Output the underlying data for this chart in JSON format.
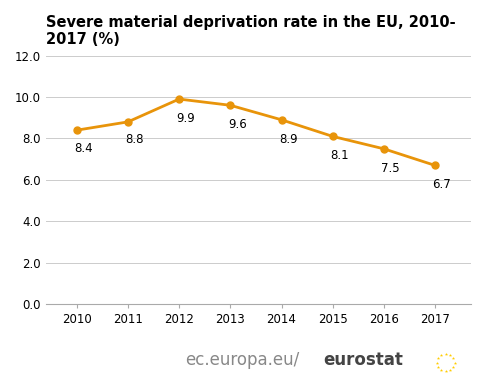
{
  "title_line1": "Severe material deprivation rate in the EU, 2010-",
  "title_line2": "2017 (%)",
  "years": [
    2010,
    2011,
    2012,
    2013,
    2014,
    2015,
    2016,
    2017
  ],
  "values": [
    8.4,
    8.8,
    9.9,
    9.6,
    8.9,
    8.1,
    7.5,
    6.7
  ],
  "line_color": "#E8940A",
  "marker_color": "#E8940A",
  "marker_style": "o",
  "marker_size": 5,
  "line_width": 2.0,
  "ylim": [
    0,
    12.0
  ],
  "yticks": [
    0.0,
    2.0,
    4.0,
    6.0,
    8.0,
    10.0,
    12.0
  ],
  "background_color": "#ffffff",
  "grid_color": "#cccccc",
  "title_fontsize": 10.5,
  "label_fontsize": 8.5,
  "annotation_fontsize": 8.5,
  "watermark_normal": "ec.europa.eu/",
  "watermark_bold": "eurostat",
  "watermark_fontsize": 12,
  "watermark_normal_color": "#888888",
  "watermark_bold_color": "#444444",
  "flag_color": "#003399",
  "star_color": "#FFCC00"
}
